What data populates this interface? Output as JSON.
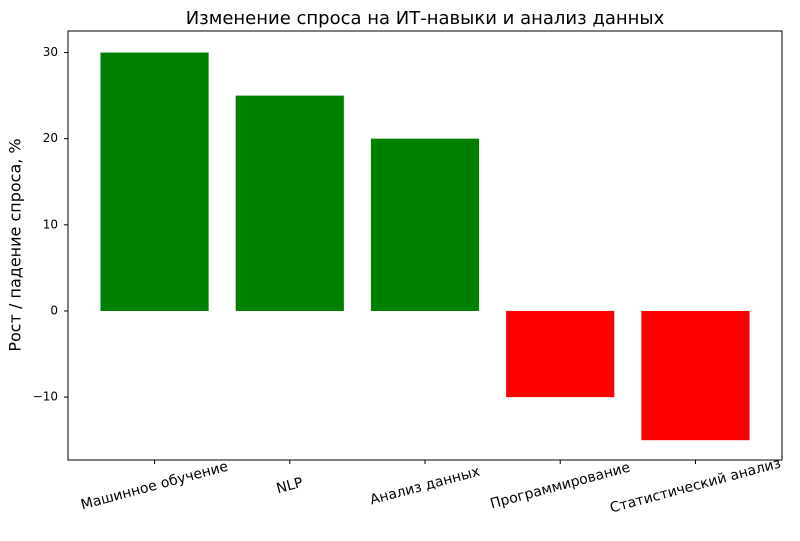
{
  "chart_data": {
    "type": "bar",
    "title": "Изменение спроса на ИТ-навыки и анализ данных",
    "ylabel": "Рост / падение спроса, %",
    "categories": [
      "Машинное обучение",
      "NLP",
      "Анализ данных",
      "Программирование",
      "Статистический анализ"
    ],
    "values": [
      30,
      25,
      20,
      -10,
      -15
    ],
    "colors": [
      "#008000",
      "#008000",
      "#008000",
      "#ff0000",
      "#ff0000"
    ],
    "ylim": [
      -17.3,
      32.5
    ],
    "yticks": [
      {
        "value": -10,
        "label": "−10"
      },
      0,
      10,
      20,
      30
    ],
    "grid": false
  }
}
